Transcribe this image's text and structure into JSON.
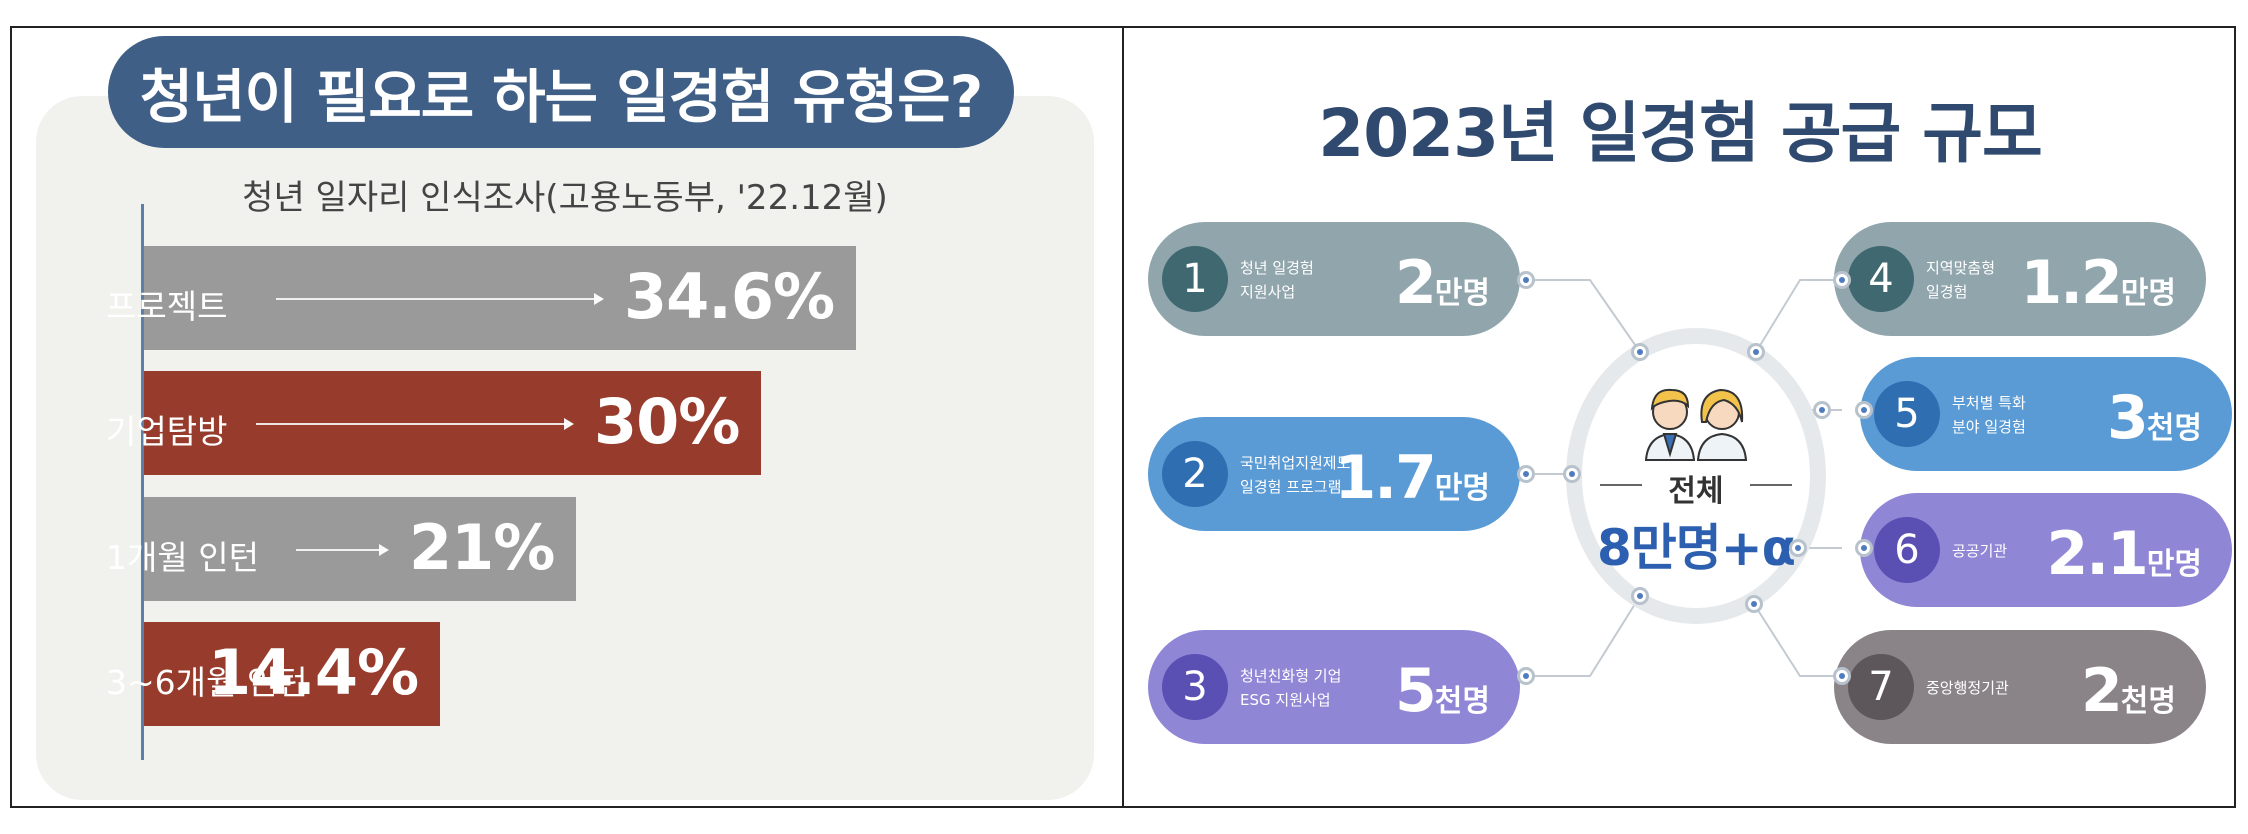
{
  "left": {
    "title": "청년이 필요로 하는 일경험 유형은?",
    "subtitle": "청년 일자리 인식조사(고용노동부, '22.12월)"
  },
  "chart_data": [
    {
      "type": "bar",
      "orientation": "horizontal",
      "categories": [
        "프로젝트",
        "기업탐방",
        "1개월 인턴",
        "3~6개월 인턴"
      ],
      "values": [
        34.6,
        30,
        21,
        14.4
      ],
      "value_labels": [
        "34.6%",
        "30%",
        "21%",
        "14.4%"
      ],
      "colors": [
        "#9a9a9a",
        "#973c2d",
        "#9a9a9a",
        "#973c2d"
      ],
      "title": "청년이 필요로 하는 일경험 유형은?",
      "subtitle": "청년 일자리 인식조사(고용노동부, '22.12월)",
      "xlim": [
        0,
        40
      ]
    }
  ],
  "right": {
    "title": "2023년 일경험 공급 규모",
    "center": {
      "label": "전체",
      "value": "8만명+α"
    },
    "nodes": [
      {
        "num": "1",
        "desc": "청년 일경험\n지원사업",
        "value": "2",
        "unit": "만명",
        "bg": "#90a6ac",
        "circle": "#3f6870"
      },
      {
        "num": "2",
        "desc": "국민취업지원제도\n일경험 프로그램",
        "value": "1.7",
        "unit": "만명",
        "bg": "#5a9bd6",
        "circle": "#2f6eb0"
      },
      {
        "num": "3",
        "desc": "청년친화형 기업\nESG 지원사업",
        "value": "5",
        "unit": "천명",
        "bg": "#8f86d6",
        "circle": "#5a4fb3"
      },
      {
        "num": "4",
        "desc": "지역맞춤형\n일경험",
        "value": "1.2",
        "unit": "만명",
        "bg": "#90a6ac",
        "circle": "#3f6870"
      },
      {
        "num": "5",
        "desc": "부처별 특화\n분야 일경험",
        "value": "3",
        "unit": "천명",
        "bg": "#5a9bd6",
        "circle": "#2f6eb0"
      },
      {
        "num": "6",
        "desc": "공공기관",
        "value": "2.1",
        "unit": "만명",
        "bg": "#8f86d6",
        "circle": "#5a4fb3"
      },
      {
        "num": "7",
        "desc": "중앙행정기관",
        "value": "2",
        "unit": "천명",
        "bg": "#8a8488",
        "circle": "#5d575b"
      }
    ]
  }
}
